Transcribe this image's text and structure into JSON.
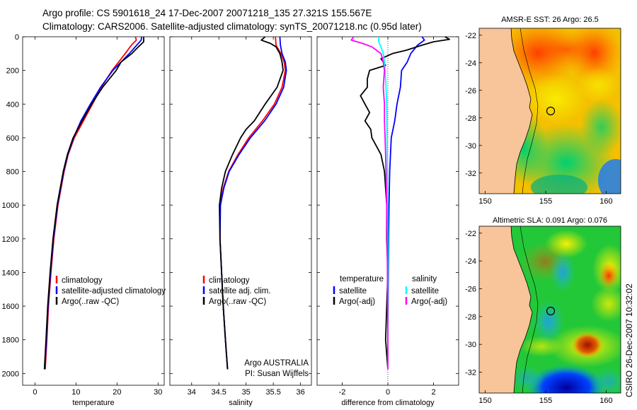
{
  "header": {
    "line1": "Argo profile: CS 5901618_24 17-Dec-2007 20071218_135 27.321S 155.567E",
    "line2": "Climatology: CARS2006. Satellite-adjusted climatology: synTS_20071218.nc (0.95d later)"
  },
  "watermark": "CSIRO 26-Dec-2007 10:32:02",
  "colors": {
    "climatology": "#ff0000",
    "satellite": "#0000ff",
    "argo": "#000000",
    "satellite_salinity": "#00ffff",
    "argo_salinity": "#ff00ff"
  },
  "chart_data": [
    {
      "type": "line",
      "id": "temperature",
      "xlabel": "temperature",
      "ylabel": "",
      "xlim": [
        -3,
        31.5
      ],
      "ylim": [
        2070,
        0
      ],
      "xticks": [
        0,
        10,
        20,
        30
      ],
      "yticks": [
        0,
        200,
        400,
        600,
        800,
        1000,
        1200,
        1400,
        1600,
        1800,
        2000
      ],
      "legend": [
        "climatology",
        "satellite-adjusted climatology",
        "Argo(..raw -QC)"
      ],
      "series": [
        {
          "name": "climatology",
          "color": "#ff0000",
          "depth": [
            0,
            20,
            50,
            100,
            200,
            300,
            400,
            500,
            600,
            700,
            800,
            1000,
            1200,
            1400,
            1600,
            1800,
            1975
          ],
          "values": [
            24.5,
            24.7,
            23.5,
            22.0,
            18.8,
            16.2,
            14.0,
            11.8,
            9.6,
            8.1,
            7.1,
            5.6,
            4.6,
            3.9,
            3.3,
            2.9,
            2.5
          ]
        },
        {
          "name": "satellite-adjusted climatology",
          "color": "#0000ff",
          "depth": [
            0,
            20,
            50,
            100,
            200,
            300,
            400,
            500,
            600,
            700,
            800,
            1000,
            1200,
            1400,
            1600,
            1800,
            1975
          ],
          "values": [
            26.0,
            25.9,
            24.8,
            23.0,
            19.0,
            16.0,
            13.5,
            11.2,
            9.4,
            8.0,
            7.0,
            5.5,
            4.5,
            3.8,
            3.2,
            2.8,
            2.4
          ]
        },
        {
          "name": "Argo(..raw -QC)",
          "color": "#000000",
          "depth": [
            0,
            30,
            60,
            100,
            150,
            200,
            300,
            400,
            500,
            600,
            700,
            800,
            1000,
            1200,
            1400,
            1600,
            1800,
            1975
          ],
          "values": [
            26.5,
            26.5,
            25.2,
            23.6,
            21.0,
            19.8,
            16.5,
            13.8,
            11.5,
            9.3,
            7.9,
            6.9,
            5.4,
            4.4,
            3.7,
            3.1,
            2.7,
            2.3
          ]
        }
      ]
    },
    {
      "type": "line",
      "id": "salinity",
      "xlabel": "salinity",
      "xlim": [
        33.6,
        36.2
      ],
      "ylim": [
        2070,
        0
      ],
      "xticks": [
        34,
        34.5,
        35,
        35.5,
        36
      ],
      "legend": [
        "climatology",
        "satellite adj. clim.",
        "Argo(..raw -QC)"
      ],
      "annotation": [
        "Argo AUSTRALIA",
        "PI: Susan Wijffels"
      ],
      "series": [
        {
          "name": "climatology",
          "color": "#ff0000",
          "depth": [
            0,
            50,
            100,
            150,
            200,
            300,
            400,
            500,
            600,
            700,
            800,
            900,
            1000,
            1200,
            1400,
            1600,
            1800,
            1975
          ],
          "values": [
            35.54,
            35.55,
            35.64,
            35.7,
            35.72,
            35.66,
            35.52,
            35.3,
            35.05,
            34.85,
            34.68,
            34.58,
            34.52,
            34.52,
            34.55,
            34.58,
            34.62,
            34.66
          ]
        },
        {
          "name": "satellite adj. clim.",
          "color": "#0000ff",
          "depth": [
            0,
            50,
            100,
            150,
            200,
            300,
            400,
            500,
            600,
            700,
            800,
            900,
            1000,
            1200,
            1400,
            1600,
            1800,
            1975
          ],
          "values": [
            35.62,
            35.63,
            35.66,
            35.72,
            35.74,
            35.69,
            35.55,
            35.34,
            35.08,
            34.87,
            34.69,
            34.59,
            34.53,
            34.52,
            34.55,
            34.58,
            34.62,
            34.66
          ]
        },
        {
          "name": "Argo(..raw -QC)",
          "color": "#000000",
          "depth": [
            0,
            20,
            40,
            60,
            100,
            150,
            200,
            300,
            400,
            500,
            550,
            600,
            700,
            800,
            900,
            1000,
            1200,
            1400,
            1600,
            1800,
            1975
          ],
          "values": [
            35.35,
            35.28,
            35.45,
            35.55,
            35.62,
            35.66,
            35.68,
            35.57,
            35.35,
            35.15,
            35.0,
            34.9,
            34.75,
            34.62,
            34.55,
            34.51,
            34.52,
            34.55,
            34.58,
            34.62,
            34.66
          ]
        }
      ]
    },
    {
      "type": "line",
      "id": "difference",
      "xlabel": "difference from climatology",
      "xlim": [
        -3.1,
        3.1
      ],
      "ylim": [
        2070,
        0
      ],
      "xticks": [
        -2,
        0,
        2
      ],
      "legend": {
        "temperature": "temperature",
        "salinity": "salinity",
        "entries": [
          "satellite",
          "Argo(-adj)",
          "satellite",
          "Argo(-adj)"
        ]
      },
      "series": [
        {
          "name": "temperature satellite",
          "color": "#0000ff",
          "depth": [
            0,
            20,
            50,
            100,
            150,
            200,
            300,
            400,
            500,
            600,
            800,
            1000,
            1200,
            1400,
            1600,
            1800,
            1975
          ],
          "values": [
            1.5,
            1.6,
            1.3,
            1.0,
            0.85,
            0.6,
            0.55,
            0.4,
            0.3,
            0.15,
            0.08,
            0.05,
            0.03,
            0.02,
            0.01,
            0.0,
            0.0
          ]
        },
        {
          "name": "temperature Argo(-adj)",
          "color": "#000000",
          "depth": [
            0,
            15,
            30,
            50,
            80,
            100,
            130,
            170,
            200,
            250,
            300,
            350,
            400,
            450,
            500,
            550,
            600,
            650,
            700,
            800,
            900,
            1000,
            1100,
            1200,
            1400,
            1600,
            1800,
            1975
          ],
          "values": [
            2.5,
            2.7,
            2.0,
            1.5,
            0.8,
            0.2,
            -0.3,
            -0.1,
            -0.8,
            -0.9,
            -0.9,
            -1.2,
            -1.0,
            -0.8,
            -1.0,
            -0.75,
            -0.7,
            -0.5,
            -0.3,
            -0.15,
            -0.1,
            -0.05,
            -0.05,
            -0.05,
            0.0,
            -0.05,
            -0.1,
            0.0
          ]
        },
        {
          "name": "salinity satellite",
          "color": "#00ffff",
          "depth": [
            0,
            30,
            60,
            100,
            150,
            200,
            300,
            400,
            600,
            800,
            1000,
            1200,
            1400,
            1600,
            1800,
            1975
          ],
          "values": [
            -0.4,
            -0.4,
            -0.3,
            -0.2,
            -0.15,
            -0.12,
            -0.08,
            -0.05,
            -0.03,
            -0.02,
            -0.01,
            0.0,
            0.0,
            0.0,
            0.0,
            0.0
          ]
        },
        {
          "name": "salinity Argo(-adj)",
          "color": "#ff00ff",
          "depth": [
            0,
            20,
            40,
            60,
            80,
            100,
            150,
            200,
            300,
            400,
            500,
            600,
            700,
            800,
            1000,
            1200,
            1400,
            1600,
            1800,
            1975
          ],
          "values": [
            -1.5,
            -1.6,
            -1.1,
            -0.7,
            -0.5,
            -0.3,
            -0.2,
            -0.15,
            -0.2,
            -0.15,
            -0.15,
            -0.12,
            -0.1,
            -0.08,
            -0.05,
            -0.03,
            -0.02,
            -0.01,
            0.0,
            0.0
          ]
        }
      ]
    },
    {
      "type": "heatmap",
      "id": "sst-map",
      "title": "AMSR-E SST: 26 Argo: 26.5",
      "xlim": [
        149.5,
        161.2
      ],
      "ylim": [
        -33.5,
        -21.5
      ],
      "xticks": [
        150,
        155,
        160
      ],
      "yticks": [
        -22,
        -24,
        -26,
        -28,
        -30,
        -32
      ],
      "float_position": {
        "lon": 155.567,
        "lat": -27.321
      }
    },
    {
      "type": "heatmap",
      "id": "sla-map",
      "title": "Altimetric SLA: 0.091 Argo: 0.076",
      "xlim": [
        149.5,
        161.2
      ],
      "ylim": [
        -33.5,
        -21.5
      ],
      "xticks": [
        150,
        155,
        160
      ],
      "yticks": [
        -22,
        -24,
        -26,
        -28,
        -30,
        -32
      ],
      "float_position": {
        "lon": 155.567,
        "lat": -27.321
      }
    }
  ]
}
